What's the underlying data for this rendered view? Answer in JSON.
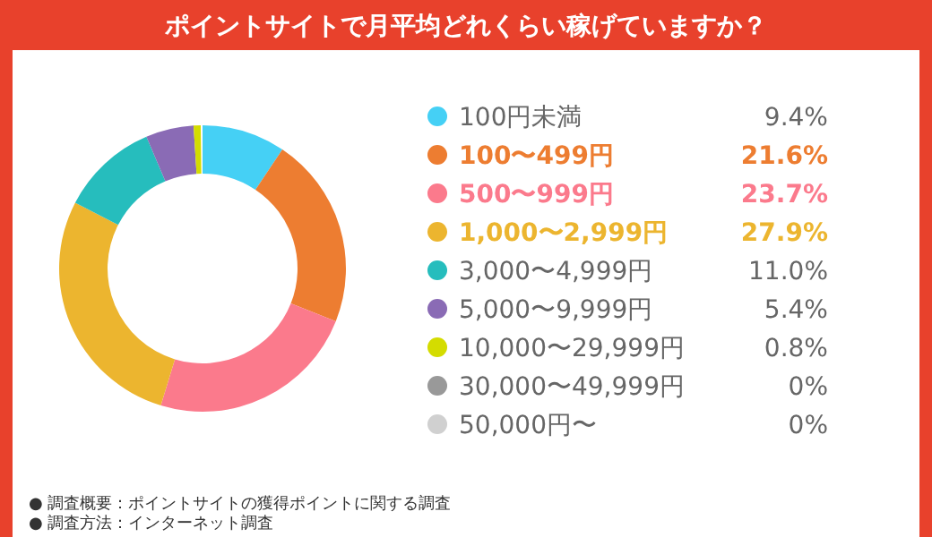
{
  "chart_data": {
    "type": "donut",
    "title": "ポイントサイトで月平均どれくらい稼げていますか？",
    "categories": [
      "100円未満",
      "100〜499円",
      "500〜999円",
      "1,000〜2,999円",
      "3,000〜4,999円",
      "5,000〜9,999円",
      "10,000〜29,999円",
      "30,000〜49,999円",
      "50,000円〜"
    ],
    "values": [
      9.4,
      21.6,
      23.7,
      27.9,
      11.0,
      5.4,
      0.8,
      0,
      0
    ],
    "value_labels": [
      "9.4%",
      "21.6%",
      "23.7%",
      "27.9%",
      "11.0%",
      "5.4%",
      "0.8%",
      "0%",
      "0%"
    ],
    "colors": [
      "#45d0f5",
      "#ed7d31",
      "#fb7a8c",
      "#ecb52f",
      "#26bdbd",
      "#8a6bb5",
      "#d4dc00",
      "#999999",
      "#d0d0d0"
    ],
    "legend": "right",
    "annotations": [
      "● 調査概要：ポイントサイトの獲得ポイントに関する調査",
      "● 調査方法：インターネット調査"
    ]
  }
}
